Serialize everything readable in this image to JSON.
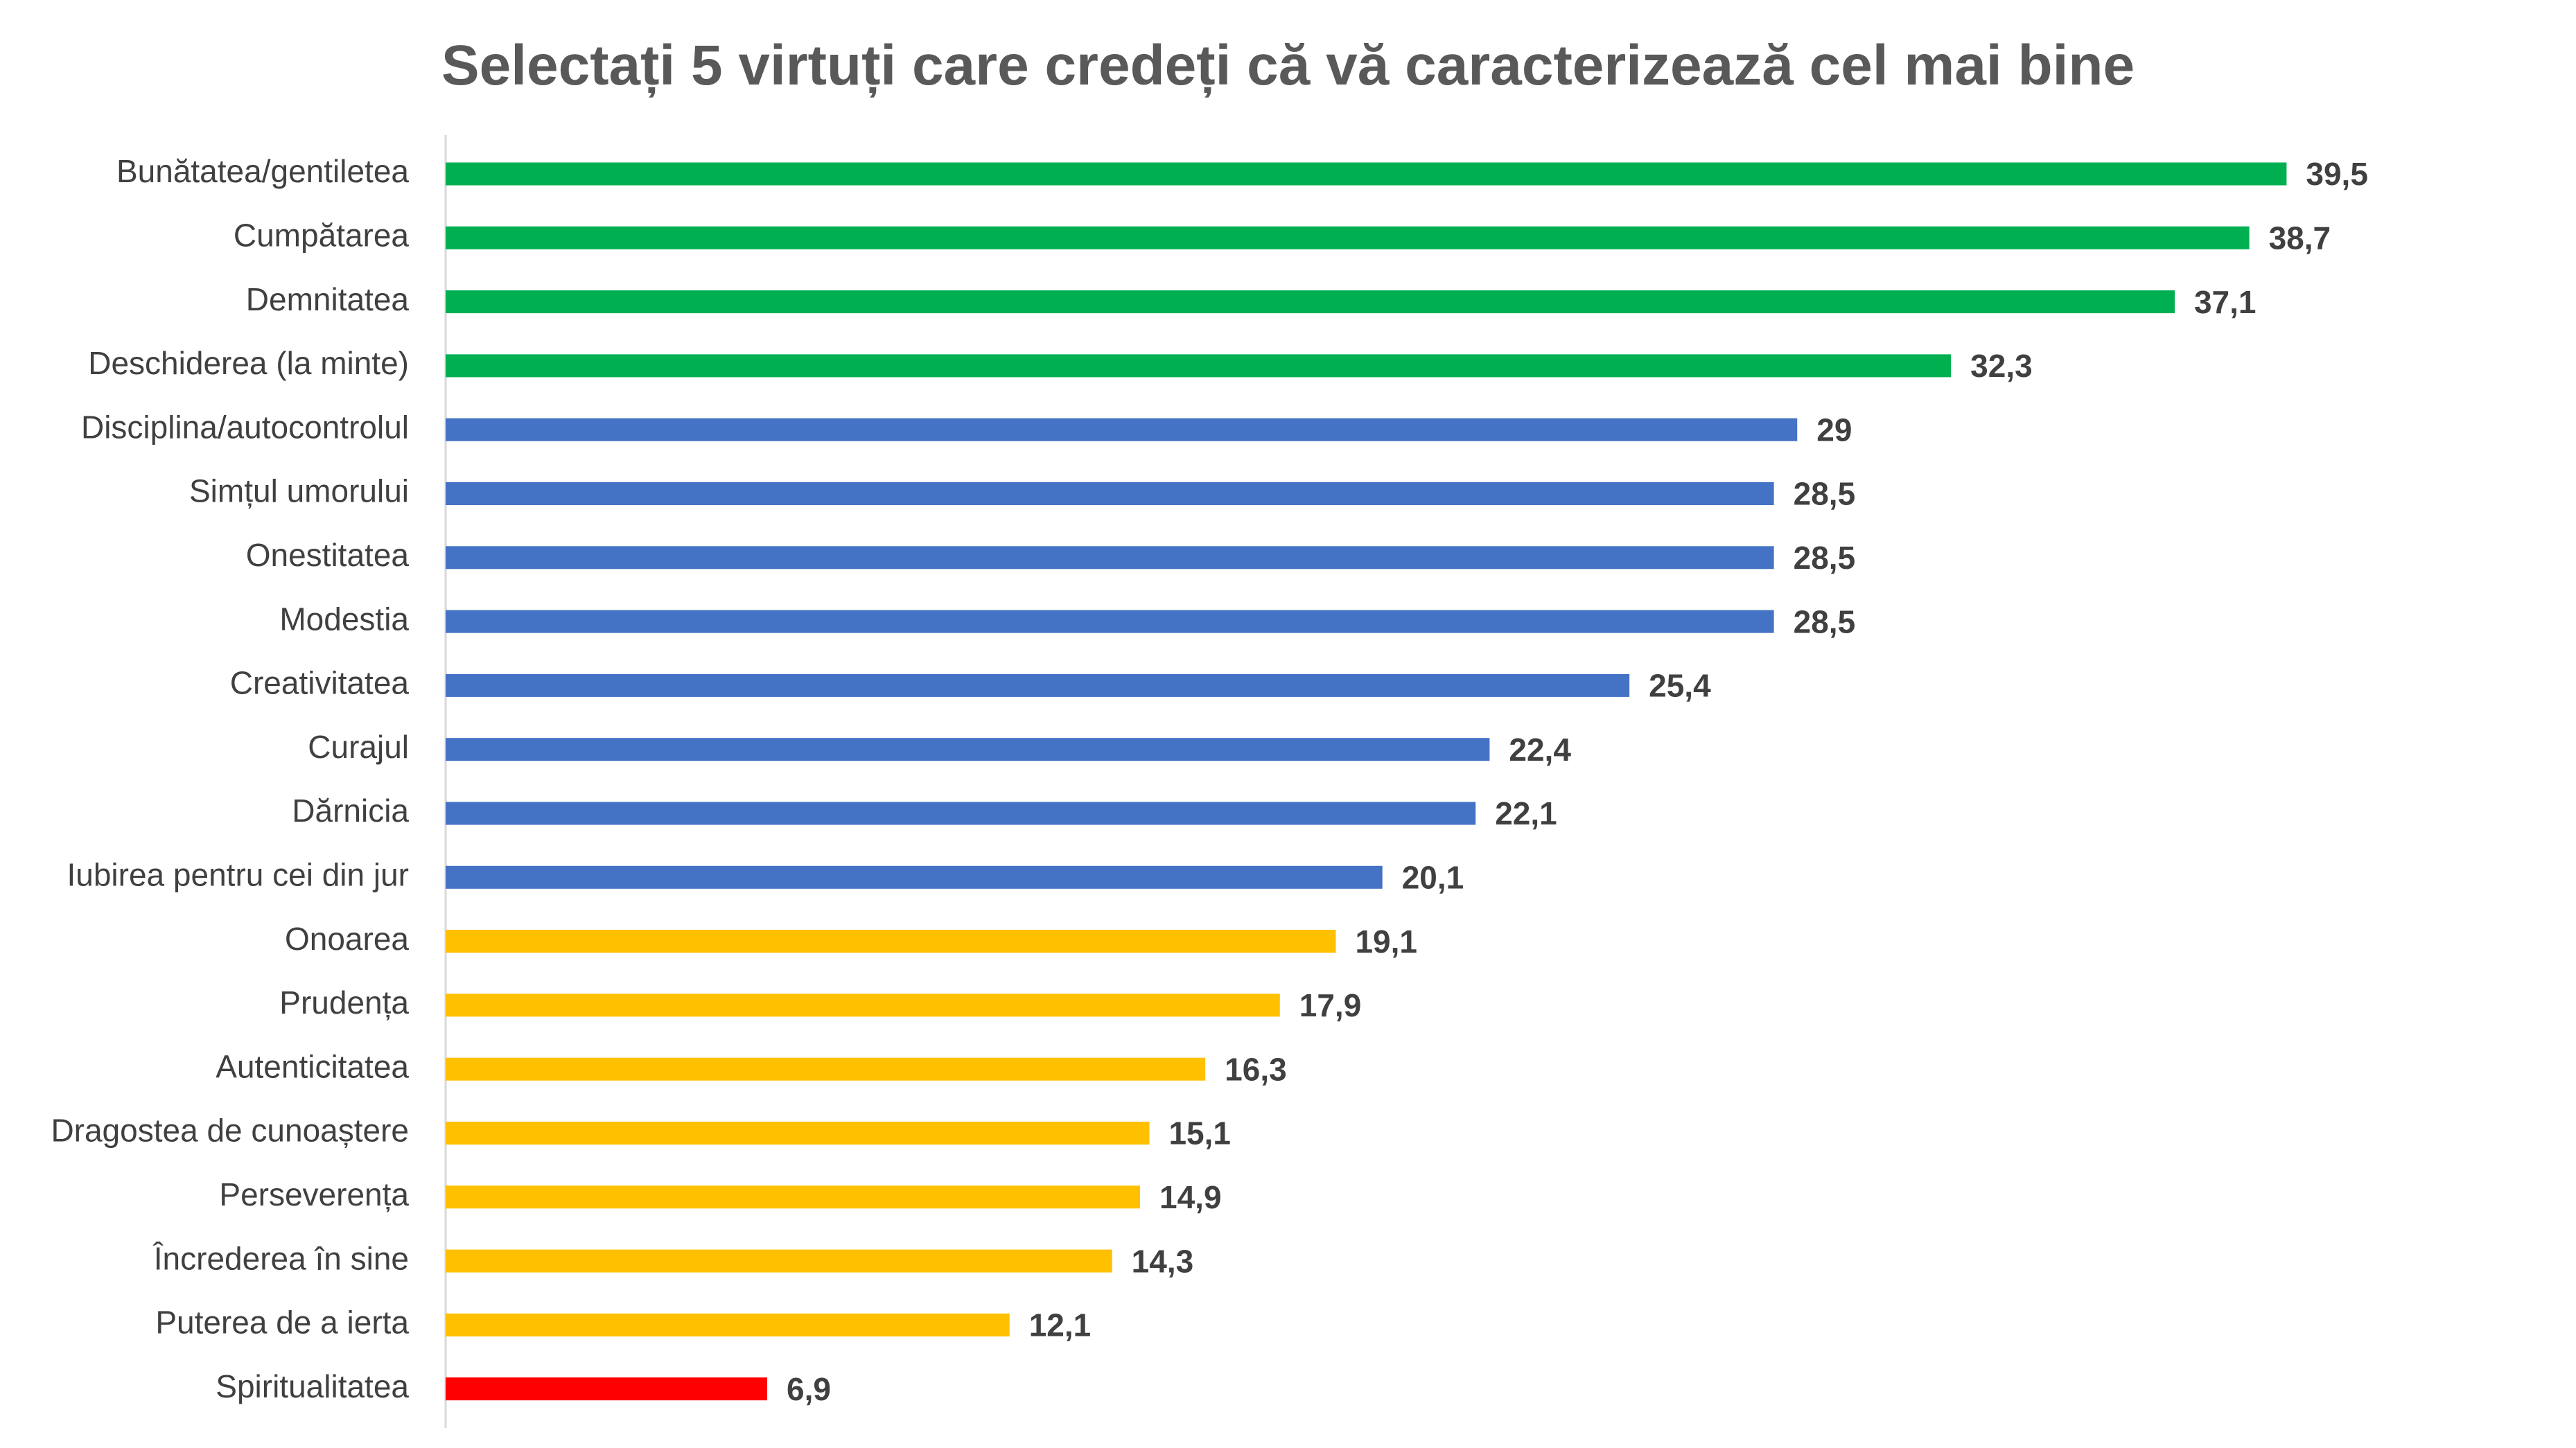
{
  "chart_data": {
    "type": "bar",
    "orientation": "horizontal",
    "title": "Selectați 5 virtuți care credeți că vă caracterizează cel mai bine",
    "xlabel": "",
    "ylabel": "",
    "xlim": [
      0,
      45
    ],
    "grid": false,
    "categories": [
      "Bunătatea/gentiletea",
      "Cumpătarea",
      "Demnitatea",
      "Deschiderea (la minte)",
      "Disciplina/autocontrolul",
      "Simțul umorului",
      "Onestitatea",
      "Modestia",
      "Creativitatea",
      "Curajul",
      "Dărnicia",
      "Iubirea pentru cei din jur",
      "Onoarea",
      "Prudența",
      "Autenticitatea",
      "Dragostea de cunoaștere",
      "Perseverența",
      "Încrederea în sine",
      "Puterea de a ierta",
      "Spiritualitatea"
    ],
    "values": [
      39.5,
      38.7,
      37.1,
      32.3,
      29,
      28.5,
      28.5,
      28.5,
      25.4,
      22.4,
      22.1,
      20.1,
      19.1,
      17.9,
      16.3,
      15.1,
      14.9,
      14.3,
      12.1,
      6.9
    ],
    "value_labels": [
      "39,5",
      "38,7",
      "37,1",
      "32,3",
      "29",
      "28,5",
      "28,5",
      "28,5",
      "25,4",
      "22,4",
      "22,1",
      "20,1",
      "19,1",
      "17,9",
      "16,3",
      "15,1",
      "14,9",
      "14,3",
      "12,1",
      "6,9"
    ],
    "bar_colors": [
      "#00B050",
      "#00B050",
      "#00B050",
      "#00B050",
      "#4472C4",
      "#4472C4",
      "#4472C4",
      "#4472C4",
      "#4472C4",
      "#4472C4",
      "#4472C4",
      "#4472C4",
      "#FFC000",
      "#FFC000",
      "#FFC000",
      "#FFC000",
      "#FFC000",
      "#FFC000",
      "#FFC000",
      "#FF0000"
    ],
    "axis_color": "#D9D9D9"
  }
}
